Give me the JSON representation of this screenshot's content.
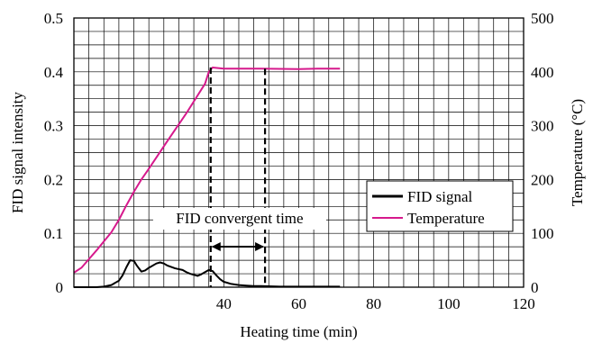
{
  "chart_data": {
    "type": "line",
    "xlabel": "Heating time (min)",
    "ylabel": "FID signal intensity",
    "y2label": "Temperature (°C)",
    "xlim": [
      0,
      120
    ],
    "ylim": [
      0,
      0.5
    ],
    "y2lim": [
      0,
      500
    ],
    "xticks": [
      "40",
      "60",
      "80",
      "100",
      "120"
    ],
    "yticks": [
      "0",
      "0.1",
      "0.2",
      "0.3",
      "0.4",
      "0.5"
    ],
    "y2ticks": [
      "0",
      "100",
      "200",
      "300",
      "400",
      "500"
    ],
    "grid": true,
    "legend_position": "right-middle",
    "series": [
      {
        "name": "FID signal",
        "axis": "left",
        "color": "#000000",
        "x": [
          0,
          6,
          8,
          10,
          12,
          13,
          14,
          15,
          16,
          16.8,
          18,
          19,
          20,
          22,
          23,
          24,
          25,
          27,
          29,
          30,
          31,
          33,
          34,
          35,
          36,
          37,
          38,
          39,
          40,
          42,
          44,
          46,
          48,
          50,
          55,
          60,
          65,
          71
        ],
        "values": [
          0,
          0,
          0.001,
          0.004,
          0.012,
          0.022,
          0.037,
          0.05,
          0.049,
          0.04,
          0.029,
          0.031,
          0.036,
          0.044,
          0.046,
          0.044,
          0.04,
          0.035,
          0.032,
          0.028,
          0.025,
          0.021,
          0.024,
          0.028,
          0.032,
          0.03,
          0.022,
          0.015,
          0.01,
          0.006,
          0.004,
          0.003,
          0.002,
          0.002,
          0.001,
          0.001,
          0.001,
          0.001
        ]
      },
      {
        "name": "Temperature",
        "axis": "right",
        "color": "#d6198c",
        "x": [
          0,
          2,
          4,
          6,
          8,
          10,
          12,
          14,
          16,
          18,
          20,
          25,
          30,
          35,
          36,
          37,
          40,
          50,
          60,
          65,
          71
        ],
        "values": [
          27,
          36,
          52,
          68,
          85,
          102,
          125,
          152,
          177,
          200,
          220,
          272,
          323,
          378,
          400,
          408,
          406,
          406,
          405,
          406,
          406
        ]
      }
    ],
    "annotation": {
      "label": "FID convergent time",
      "x_start": 36.5,
      "x_end": 51
    }
  }
}
